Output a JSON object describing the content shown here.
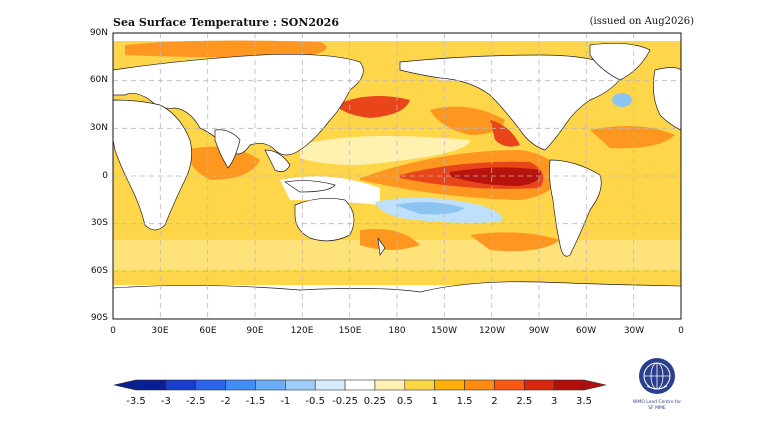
{
  "header": {
    "title": "Sea Surface Temperature : SON2026",
    "issued": "(issued on Aug2026)"
  },
  "axes": {
    "lat_labels": [
      "90N",
      "60N",
      "30N",
      "0",
      "30S",
      "60S",
      "90S"
    ],
    "lon_labels": [
      "0",
      "30E",
      "60E",
      "90E",
      "120E",
      "150E",
      "180",
      "150W",
      "120W",
      "90W",
      "60W",
      "30W",
      "0"
    ]
  },
  "colorbar": {
    "labels": [
      "-3.5",
      "-3",
      "-2.5",
      "-2",
      "-1.5",
      "-1",
      "-0.5",
      "-0.25",
      "0.25",
      "0.5",
      "1",
      "1.5",
      "2",
      "2.5",
      "3",
      "3.5"
    ],
    "colors": [
      "#0a1f8f",
      "#1440c8",
      "#2a66e6",
      "#3f8ef0",
      "#6aaef5",
      "#9fcdf7",
      "#d6ecfb",
      "#ffffff",
      "#fff2b0",
      "#ffd54a",
      "#ffb000",
      "#ff8a14",
      "#f45a14",
      "#d62a0e",
      "#b0100c"
    ]
  },
  "legend_colors": {
    "land": "#ffffff",
    "warm_light": "#ffe27a",
    "warm_mid": "#ffbf1f",
    "warm_orange": "#ff9620",
    "warm_red": "#e8461a",
    "warm_dark": "#b8140e",
    "cool_light": "#bfe0fa",
    "cool_mid": "#8cc4f2"
  },
  "logo": {
    "icon": "wmo-emblem-icon",
    "line1": "WMO Lead Centre for",
    "line2": "SF MME"
  }
}
